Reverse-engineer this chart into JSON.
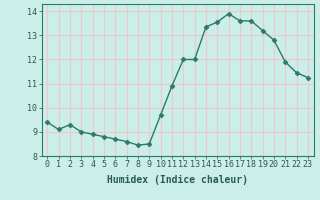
{
  "title": "",
  "xlabel": "Humidex (Indice chaleur)",
  "ylabel": "",
  "x": [
    0,
    1,
    2,
    3,
    4,
    5,
    6,
    7,
    8,
    9,
    10,
    11,
    12,
    13,
    14,
    15,
    16,
    17,
    18,
    19,
    20,
    21,
    22,
    23
  ],
  "y": [
    9.4,
    9.1,
    9.3,
    9.0,
    8.9,
    8.8,
    8.7,
    8.6,
    8.45,
    8.5,
    9.7,
    10.9,
    12.0,
    12.0,
    13.35,
    13.55,
    13.9,
    13.6,
    13.6,
    13.2,
    12.8,
    11.9,
    11.45,
    11.25
  ],
  "line_color": "#2a7a6a",
  "marker": "D",
  "marker_size": 2.5,
  "bg_color": "#cceee8",
  "grid_color": "#f0c8c8",
  "ylim": [
    8.0,
    14.3
  ],
  "xlim": [
    -0.5,
    23.5
  ],
  "yticks": [
    8,
    9,
    10,
    11,
    12,
    13,
    14
  ],
  "xticks": [
    0,
    1,
    2,
    3,
    4,
    5,
    6,
    7,
    8,
    9,
    10,
    11,
    12,
    13,
    14,
    15,
    16,
    17,
    18,
    19,
    20,
    21,
    22,
    23
  ],
  "tick_fontsize": 6,
  "xlabel_fontsize": 7,
  "line_width": 1.0,
  "marker_color": "#2a7a6a"
}
